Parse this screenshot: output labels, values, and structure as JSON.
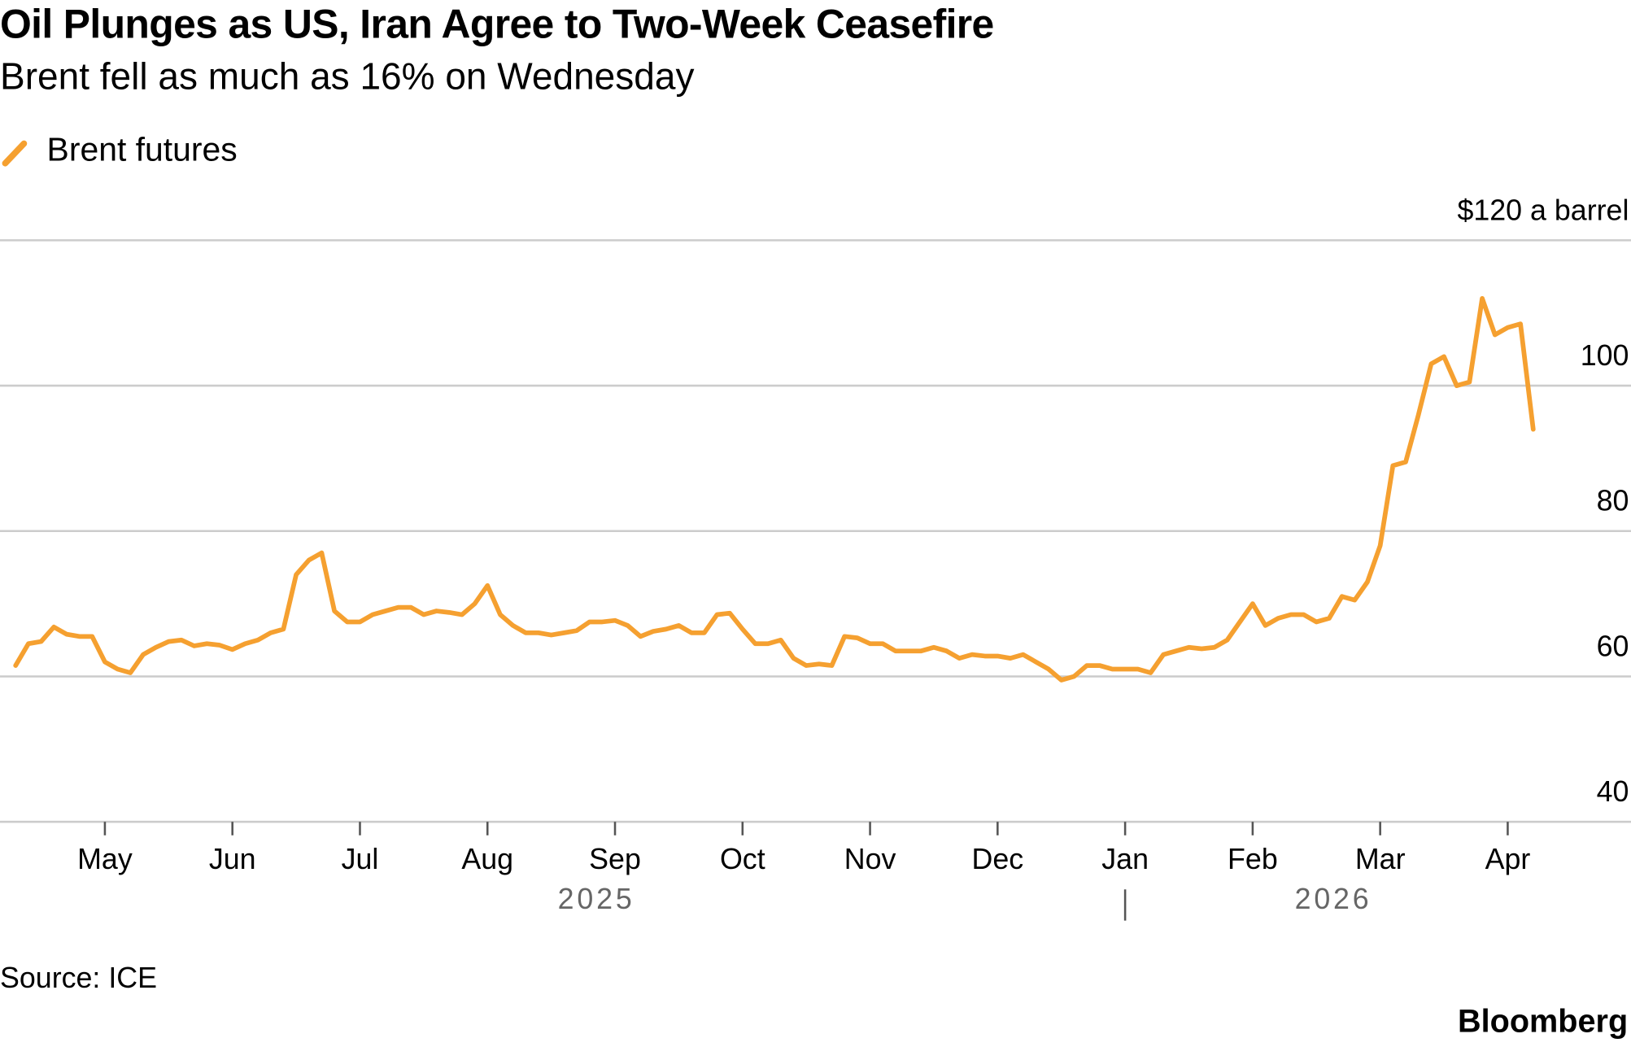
{
  "chart_data": {
    "type": "line",
    "title": "Oil Plunges as US, Iran Agree to Two-Week Ceasefire",
    "subtitle": "Brent fell as much as 16% on Wednesday",
    "source": "Source: ICE",
    "brand": "Bloomberg",
    "legend": "top-left",
    "grid": true,
    "categories": [
      null,
      null,
      null,
      null,
      null,
      null,
      null,
      "May",
      null,
      null,
      null,
      null,
      null,
      null,
      null,
      null,
      null,
      "Jun",
      null,
      null,
      null,
      null,
      null,
      null,
      null,
      null,
      null,
      "Jul",
      null,
      null,
      null,
      null,
      null,
      null,
      null,
      null,
      null,
      "Aug",
      null,
      null,
      null,
      null,
      null,
      null,
      null,
      null,
      null,
      "Sep",
      null,
      null,
      null,
      null,
      null,
      null,
      null,
      null,
      null,
      "Oct",
      null,
      null,
      null,
      null,
      null,
      null,
      null,
      null,
      null,
      "Nov",
      null,
      null,
      null,
      null,
      null,
      null,
      null,
      null,
      null,
      "Dec",
      null,
      null,
      null,
      null,
      null,
      null,
      null,
      null,
      null,
      "Jan",
      null,
      null,
      null,
      null,
      null,
      null,
      null,
      null,
      null,
      "Feb",
      null,
      null,
      null,
      null,
      null,
      null,
      null,
      null,
      null,
      "Mar",
      null,
      null,
      null,
      null,
      null,
      null,
      null,
      null,
      null,
      "Apr",
      null,
      null
    ],
    "years": [
      "2025",
      "2026"
    ],
    "series": [
      {
        "name": "Brent futures",
        "color": "#f5a030",
        "values": [
          61.5,
          64.5,
          64.8,
          66.8,
          65.8,
          65.5,
          65.5,
          62,
          61,
          60.5,
          63,
          64,
          64.8,
          65,
          64.2,
          64.5,
          64.3,
          63.7,
          64.5,
          65,
          66,
          66.5,
          74,
          76,
          77,
          69,
          67.5,
          67.5,
          68.5,
          69,
          69.5,
          69.5,
          68.5,
          69,
          68.8,
          68.5,
          70,
          72.5,
          68.5,
          67,
          66,
          66,
          65.7,
          66,
          66.3,
          67.5,
          67.5,
          67.7,
          67,
          65.5,
          66.2,
          66.5,
          67,
          66,
          66,
          68.5,
          68.7,
          66.5,
          64.5,
          64.5,
          65,
          62.5,
          61.5,
          61.7,
          61.5,
          65.5,
          65.3,
          64.5,
          64.5,
          63.5,
          63.5,
          63.5,
          64,
          63.5,
          62.5,
          63,
          62.8,
          62.8,
          62.5,
          63,
          62,
          61,
          59.5,
          60,
          61.5,
          61.5,
          61,
          61,
          61,
          60.5,
          63,
          63.5,
          64,
          63.8,
          64,
          65,
          67.5,
          70,
          67,
          68,
          68.5,
          68.5,
          67.5,
          68,
          71,
          70.5,
          73,
          78,
          89,
          89.5,
          96,
          103,
          104,
          100,
          100.5,
          112,
          107,
          108,
          108.5,
          94
        ]
      }
    ],
    "ylim": [
      40,
      120
    ],
    "yticks": [
      40,
      60,
      80,
      100,
      {
        "value": 120,
        "label": "$120 a barrel"
      }
    ]
  }
}
